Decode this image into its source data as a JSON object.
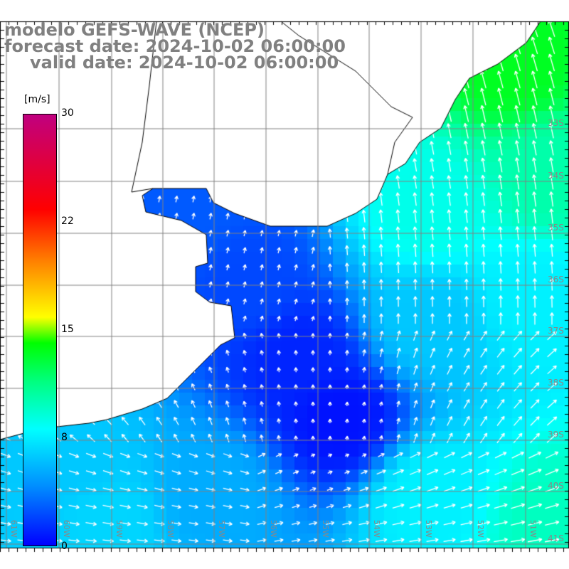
{
  "title": {
    "model": "modelo GEFS-WAVE (NCEP)",
    "forecast": "forecast date: 2024-10-02 06:00:00",
    "valid": "valid date: 2024-10-02 06:00:00"
  },
  "colorbar": {
    "unit": "[m/s]",
    "ticks": [
      "30",
      "22",
      "15",
      "8",
      "0"
    ],
    "tick_values": [
      30,
      22,
      15,
      8,
      0
    ],
    "colors": [
      "#0000ff",
      "#0090ff",
      "#00ffff",
      "#00ff80",
      "#00ff00",
      "#ffff00",
      "#ff8000",
      "#ff0000",
      "#c0007f"
    ]
  },
  "axes": {
    "lon_labels": [
      "61W",
      "60W",
      "59W",
      "58W",
      "57W",
      "56W",
      "55W",
      "54W",
      "53W",
      "52W",
      "51W"
    ],
    "lat_labels": [
      "33S",
      "34S",
      "35S",
      "36S",
      "37S",
      "38S",
      "39S",
      "40S",
      "41S"
    ]
  },
  "colors": {
    "land": "#ffffff",
    "grid": "#808080",
    "coast": "#000000",
    "arrow": "#ffffff"
  }
}
